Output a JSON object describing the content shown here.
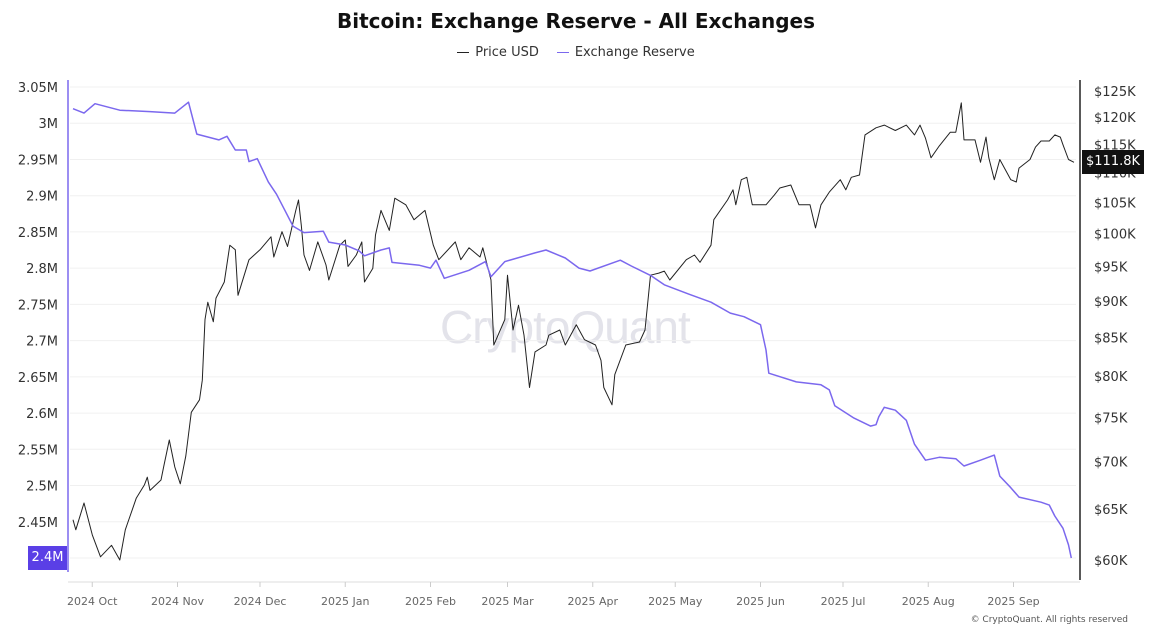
{
  "chart_data": {
    "type": "line",
    "title": "Bitcoin: Exchange Reserve - All Exchanges",
    "x_unit": "days since first point",
    "x_start": "2024-09-24",
    "x_range": [
      0,
      364
    ],
    "x_ticks": [
      {
        "label": "2024 Oct",
        "day": 7
      },
      {
        "label": "2024 Nov",
        "day": 38
      },
      {
        "label": "2024 Dec",
        "day": 68
      },
      {
        "label": "2025 Jan",
        "day": 99
      },
      {
        "label": "2025 Feb",
        "day": 130
      },
      {
        "label": "2025 Mar",
        "day": 158
      },
      {
        "label": "2025 Apr",
        "day": 189
      },
      {
        "label": "2025 May",
        "day": 219
      },
      {
        "label": "2025 Jun",
        "day": 250
      },
      {
        "label": "2025 Jul",
        "day": 280
      },
      {
        "label": "2025 Aug",
        "day": 311
      },
      {
        "label": "2025 Sep",
        "day": 342
      }
    ],
    "left_axis": {
      "range": [
        2.4,
        3.05
      ],
      "unit": "M",
      "ticks": [
        {
          "label": "3.05M",
          "value": 3.05
        },
        {
          "label": "3M",
          "value": 3.0
        },
        {
          "label": "2.95M",
          "value": 2.95
        },
        {
          "label": "2.9M",
          "value": 2.9
        },
        {
          "label": "2.85M",
          "value": 2.85
        },
        {
          "label": "2.8M",
          "value": 2.8
        },
        {
          "label": "2.75M",
          "value": 2.75
        },
        {
          "label": "2.7M",
          "value": 2.7
        },
        {
          "label": "2.65M",
          "value": 2.65
        },
        {
          "label": "2.6M",
          "value": 2.6
        },
        {
          "label": "2.55M",
          "value": 2.55
        },
        {
          "label": "2.5M",
          "value": 2.5
        },
        {
          "label": "2.45M",
          "value": 2.45
        }
      ]
    },
    "right_axis": {
      "scale": "log",
      "range": [
        60,
        125
      ],
      "unit": "K USD",
      "ticks": [
        {
          "label": "$125K",
          "value": 125
        },
        {
          "label": "$120K",
          "value": 120
        },
        {
          "label": "$115K",
          "value": 115
        },
        {
          "label": "$110K",
          "value": 110
        },
        {
          "label": "$105K",
          "value": 105
        },
        {
          "label": "$100K",
          "value": 100
        },
        {
          "label": "$95K",
          "value": 95
        },
        {
          "label": "$90K",
          "value": 90
        },
        {
          "label": "$85K",
          "value": 85
        },
        {
          "label": "$80K",
          "value": 80
        },
        {
          "label": "$75K",
          "value": 75
        },
        {
          "label": "$70K",
          "value": 70
        },
        {
          "label": "$65K",
          "value": 65
        },
        {
          "label": "$60K",
          "value": 60
        }
      ]
    },
    "grid": true,
    "legend_placement": "top-center",
    "series": [
      {
        "name": "Price USD",
        "axis": "right",
        "color": "#222222",
        "points": [
          [
            0,
            63.9
          ],
          [
            1,
            62.9
          ],
          [
            4,
            65.6
          ],
          [
            7,
            62.4
          ],
          [
            10,
            60.3
          ],
          [
            14,
            61.4
          ],
          [
            17,
            60.0
          ],
          [
            19,
            62.9
          ],
          [
            23,
            66.1
          ],
          [
            26,
            67.5
          ],
          [
            27,
            68.3
          ],
          [
            28,
            66.9
          ],
          [
            32,
            68.0
          ],
          [
            33,
            69.5
          ],
          [
            35,
            72.4
          ],
          [
            37,
            69.4
          ],
          [
            39,
            67.6
          ],
          [
            41,
            70.6
          ],
          [
            43,
            75.6
          ],
          [
            46,
            77.1
          ],
          [
            47,
            79.5
          ],
          [
            48,
            87.4
          ],
          [
            49,
            89.8
          ],
          [
            51,
            87.1
          ],
          [
            52,
            90.4
          ],
          [
            55,
            92.7
          ],
          [
            57,
            98.2
          ],
          [
            59,
            97.5
          ],
          [
            60,
            90.8
          ],
          [
            64,
            96.0
          ],
          [
            68,
            97.5
          ],
          [
            72,
            99.5
          ],
          [
            73,
            96.4
          ],
          [
            76,
            100.3
          ],
          [
            78,
            98.0
          ],
          [
            81,
            103.7
          ],
          [
            82,
            105.4
          ],
          [
            83,
            101.3
          ],
          [
            84,
            96.7
          ],
          [
            86,
            94.4
          ],
          [
            89,
            98.7
          ],
          [
            92,
            95.2
          ],
          [
            93,
            93.0
          ],
          [
            97,
            98.2
          ],
          [
            99,
            99.0
          ],
          [
            100,
            95.0
          ],
          [
            103,
            96.7
          ],
          [
            105,
            98.7
          ],
          [
            106,
            92.7
          ],
          [
            109,
            94.7
          ],
          [
            110,
            99.8
          ],
          [
            112,
            103.7
          ],
          [
            115,
            100.5
          ],
          [
            117,
            105.7
          ],
          [
            121,
            104.6
          ],
          [
            124,
            102.2
          ],
          [
            128,
            103.7
          ],
          [
            131,
            98.2
          ],
          [
            133,
            96.0
          ],
          [
            139,
            98.7
          ],
          [
            141,
            96.0
          ],
          [
            144,
            97.8
          ],
          [
            148,
            96.4
          ],
          [
            149,
            97.8
          ],
          [
            152,
            93.0
          ],
          [
            153,
            84.0
          ],
          [
            157,
            87.4
          ],
          [
            158,
            93.7
          ],
          [
            160,
            86.0
          ],
          [
            162,
            89.4
          ],
          [
            164,
            85.3
          ],
          [
            166,
            78.6
          ],
          [
            168,
            83.1
          ],
          [
            172,
            84.0
          ],
          [
            173,
            85.3
          ],
          [
            177,
            86.0
          ],
          [
            179,
            84.0
          ],
          [
            183,
            86.7
          ],
          [
            186,
            84.7
          ],
          [
            190,
            84.0
          ],
          [
            192,
            82.0
          ],
          [
            193,
            78.6
          ],
          [
            196,
            76.5
          ],
          [
            197,
            80.2
          ],
          [
            201,
            84.0
          ],
          [
            206,
            84.4
          ],
          [
            208,
            86.0
          ],
          [
            210,
            93.7
          ],
          [
            213,
            94.0
          ],
          [
            215,
            94.3
          ],
          [
            217,
            93.0
          ],
          [
            223,
            96.0
          ],
          [
            226,
            96.7
          ],
          [
            228,
            95.6
          ],
          [
            232,
            98.2
          ],
          [
            233,
            102.2
          ],
          [
            238,
            105.4
          ],
          [
            240,
            107.1
          ],
          [
            241,
            104.6
          ],
          [
            243,
            108.8
          ],
          [
            245,
            109.2
          ],
          [
            247,
            104.6
          ],
          [
            252,
            104.6
          ],
          [
            255,
            106.2
          ],
          [
            257,
            107.4
          ],
          [
            261,
            107.9
          ],
          [
            264,
            104.6
          ],
          [
            268,
            104.6
          ],
          [
            270,
            100.9
          ],
          [
            272,
            104.6
          ],
          [
            275,
            106.7
          ],
          [
            279,
            108.8
          ],
          [
            281,
            107.1
          ],
          [
            283,
            109.2
          ],
          [
            286,
            109.6
          ],
          [
            288,
            116.7
          ],
          [
            292,
            118.0
          ],
          [
            295,
            118.5
          ],
          [
            299,
            117.5
          ],
          [
            303,
            118.5
          ],
          [
            306,
            116.7
          ],
          [
            308,
            118.5
          ],
          [
            310,
            116.1
          ],
          [
            312,
            112.6
          ],
          [
            315,
            114.7
          ],
          [
            319,
            117.2
          ],
          [
            321,
            117.2
          ],
          [
            323,
            122.7
          ],
          [
            324,
            115.8
          ],
          [
            328,
            115.8
          ],
          [
            330,
            111.8
          ],
          [
            332,
            116.3
          ],
          [
            333,
            112.6
          ],
          [
            335,
            108.8
          ],
          [
            337,
            112.3
          ],
          [
            341,
            108.8
          ],
          [
            343,
            108.4
          ],
          [
            344,
            110.8
          ],
          [
            348,
            112.3
          ],
          [
            350,
            114.5
          ],
          [
            352,
            115.6
          ],
          [
            355,
            115.6
          ],
          [
            357,
            116.7
          ],
          [
            359,
            116.3
          ],
          [
            360,
            114.9
          ],
          [
            362,
            112.3
          ],
          [
            364,
            111.8
          ]
        ]
      },
      {
        "name": "Exchange Reserve",
        "axis": "left",
        "color": "#7b68ee",
        "points": [
          [
            0,
            3.02
          ],
          [
            4,
            3.014
          ],
          [
            8,
            3.027
          ],
          [
            17,
            3.018
          ],
          [
            28,
            3.016
          ],
          [
            37,
            3.014
          ],
          [
            42,
            3.029
          ],
          [
            45,
            2.985
          ],
          [
            53,
            2.977
          ],
          [
            56,
            2.982
          ],
          [
            59,
            2.963
          ],
          [
            63,
            2.963
          ],
          [
            64,
            2.947
          ],
          [
            67,
            2.951
          ],
          [
            71,
            2.919
          ],
          [
            74,
            2.902
          ],
          [
            77,
            2.88
          ],
          [
            80,
            2.858
          ],
          [
            84,
            2.849
          ],
          [
            91,
            2.851
          ],
          [
            93,
            2.836
          ],
          [
            99,
            2.832
          ],
          [
            104,
            2.824
          ],
          [
            106,
            2.817
          ],
          [
            112,
            2.825
          ],
          [
            115,
            2.828
          ],
          [
            116,
            2.808
          ],
          [
            126,
            2.804
          ],
          [
            130,
            2.8
          ],
          [
            132,
            2.811
          ],
          [
            135,
            2.786
          ],
          [
            144,
            2.797
          ],
          [
            150,
            2.809
          ],
          [
            152,
            2.788
          ],
          [
            157,
            2.809
          ],
          [
            168,
            2.821
          ],
          [
            172,
            2.825
          ],
          [
            179,
            2.814
          ],
          [
            184,
            2.8
          ],
          [
            188,
            2.796
          ],
          [
            199,
            2.811
          ],
          [
            203,
            2.803
          ],
          [
            210,
            2.79
          ],
          [
            215,
            2.777
          ],
          [
            224,
            2.764
          ],
          [
            232,
            2.753
          ],
          [
            239,
            2.738
          ],
          [
            244,
            2.733
          ],
          [
            250,
            2.722
          ],
          [
            252,
            2.687
          ],
          [
            253,
            2.655
          ],
          [
            263,
            2.643
          ],
          [
            272,
            2.639
          ],
          [
            275,
            2.632
          ],
          [
            277,
            2.61
          ],
          [
            284,
            2.593
          ],
          [
            290,
            2.582
          ],
          [
            292,
            2.584
          ],
          [
            293,
            2.595
          ],
          [
            295,
            2.608
          ],
          [
            299,
            2.604
          ],
          [
            303,
            2.59
          ],
          [
            306,
            2.557
          ],
          [
            310,
            2.535
          ],
          [
            315,
            2.539
          ],
          [
            321,
            2.537
          ],
          [
            324,
            2.527
          ],
          [
            330,
            2.535
          ],
          [
            335,
            2.542
          ],
          [
            337,
            2.513
          ],
          [
            341,
            2.497
          ],
          [
            344,
            2.484
          ],
          [
            352,
            2.477
          ],
          [
            355,
            2.473
          ],
          [
            357,
            2.458
          ],
          [
            360,
            2.441
          ],
          [
            362,
            2.418
          ],
          [
            363,
            2.4
          ]
        ]
      }
    ],
    "current_labels": {
      "price": "$111.8K",
      "reserve": "2.4M"
    },
    "watermark": "CryptoQuant",
    "copyright": "© CryptoQuant. All rights reserved"
  }
}
